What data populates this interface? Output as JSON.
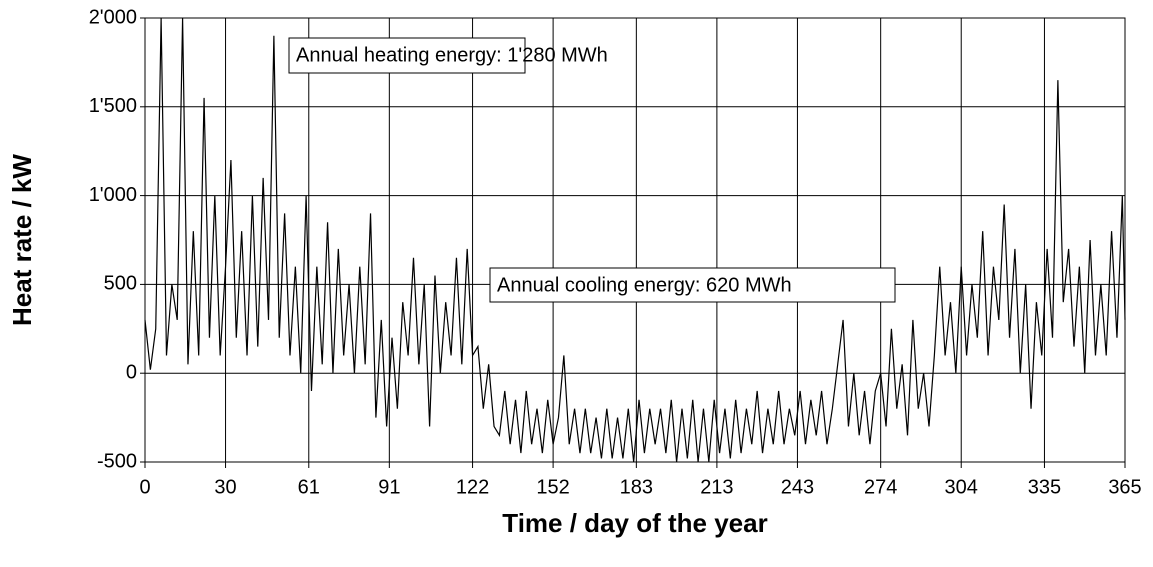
{
  "chart_data": {
    "type": "line",
    "xlabel": "Time / day of the year",
    "ylabel": "Heat rate / kW",
    "annotations": [
      "Annual heating energy: 1'280 MWh",
      "Annual cooling energy: 620 MWh"
    ],
    "color": "#000000",
    "grid": true,
    "xlim": [
      0,
      365
    ],
    "ylim": [
      -500,
      2000
    ],
    "xticks": [
      0,
      30,
      61,
      91,
      122,
      152,
      183,
      213,
      243,
      274,
      304,
      335,
      365
    ],
    "yticks": [
      {
        "value": -500,
        "label": "-500"
      },
      0,
      500,
      {
        "value": 1000,
        "label": "1'000"
      },
      {
        "value": 1500,
        "label": "1'500"
      },
      {
        "value": 2000,
        "label": "2'000"
      }
    ],
    "x": [
      0,
      2,
      4,
      6,
      8,
      10,
      12,
      14,
      16,
      18,
      20,
      22,
      24,
      26,
      28,
      30,
      32,
      34,
      36,
      38,
      40,
      42,
      44,
      46,
      48,
      50,
      52,
      54,
      56,
      58,
      60,
      62,
      64,
      66,
      68,
      70,
      72,
      74,
      76,
      78,
      80,
      82,
      84,
      86,
      88,
      90,
      92,
      94,
      96,
      98,
      100,
      102,
      104,
      106,
      108,
      110,
      112,
      114,
      116,
      118,
      120,
      122,
      124,
      126,
      128,
      130,
      132,
      134,
      136,
      138,
      140,
      142,
      144,
      146,
      148,
      150,
      152,
      154,
      156,
      158,
      160,
      162,
      164,
      166,
      168,
      170,
      172,
      174,
      176,
      178,
      180,
      182,
      184,
      186,
      188,
      190,
      192,
      194,
      196,
      198,
      200,
      202,
      204,
      206,
      208,
      210,
      212,
      214,
      216,
      218,
      220,
      222,
      224,
      226,
      228,
      230,
      232,
      234,
      236,
      238,
      240,
      242,
      244,
      246,
      248,
      250,
      252,
      254,
      256,
      258,
      260,
      262,
      264,
      266,
      268,
      270,
      272,
      274,
      276,
      278,
      280,
      282,
      284,
      286,
      288,
      290,
      292,
      294,
      296,
      298,
      300,
      302,
      304,
      306,
      308,
      310,
      312,
      314,
      316,
      318,
      320,
      322,
      324,
      326,
      328,
      330,
      332,
      334,
      336,
      338,
      340,
      342,
      344,
      346,
      348,
      350,
      352,
      354,
      356,
      358,
      360,
      362,
      364,
      365
    ],
    "values": [
      300,
      20,
      250,
      2000,
      100,
      500,
      300,
      2000,
      50,
      800,
      100,
      1550,
      200,
      1000,
      100,
      600,
      1200,
      200,
      800,
      100,
      1000,
      150,
      1100,
      300,
      1900,
      200,
      900,
      100,
      600,
      0,
      1000,
      -100,
      600,
      50,
      850,
      0,
      700,
      100,
      500,
      0,
      600,
      50,
      900,
      -250,
      300,
      -300,
      200,
      -200,
      400,
      100,
      650,
      50,
      500,
      -300,
      550,
      0,
      400,
      100,
      650,
      50,
      700,
      100,
      150,
      -200,
      50,
      -300,
      -350,
      -100,
      -400,
      -150,
      -450,
      -100,
      -400,
      -200,
      -450,
      -150,
      -400,
      -250,
      100,
      -400,
      -200,
      -450,
      -200,
      -450,
      -250,
      -480,
      -200,
      -480,
      -250,
      -480,
      -200,
      -500,
      -150,
      -450,
      -200,
      -400,
      -200,
      -450,
      -150,
      -500,
      -200,
      -480,
      -150,
      -500,
      -200,
      -500,
      -150,
      -450,
      -200,
      -480,
      -150,
      -450,
      -200,
      -400,
      -100,
      -450,
      -200,
      -400,
      -100,
      -400,
      -200,
      -350,
      -100,
      -400,
      -150,
      -350,
      -100,
      -400,
      -200,
      50,
      300,
      -300,
      0,
      -350,
      -100,
      -400,
      -100,
      0,
      -300,
      250,
      -200,
      50,
      -350,
      300,
      -200,
      0,
      -300,
      100,
      600,
      100,
      400,
      0,
      600,
      100,
      500,
      200,
      800,
      100,
      600,
      300,
      950,
      200,
      700,
      0,
      500,
      -200,
      400,
      100,
      700,
      200,
      1650,
      400,
      700,
      150,
      600,
      0,
      750,
      100,
      500,
      100,
      800,
      200,
      1000,
      300
    ]
  }
}
